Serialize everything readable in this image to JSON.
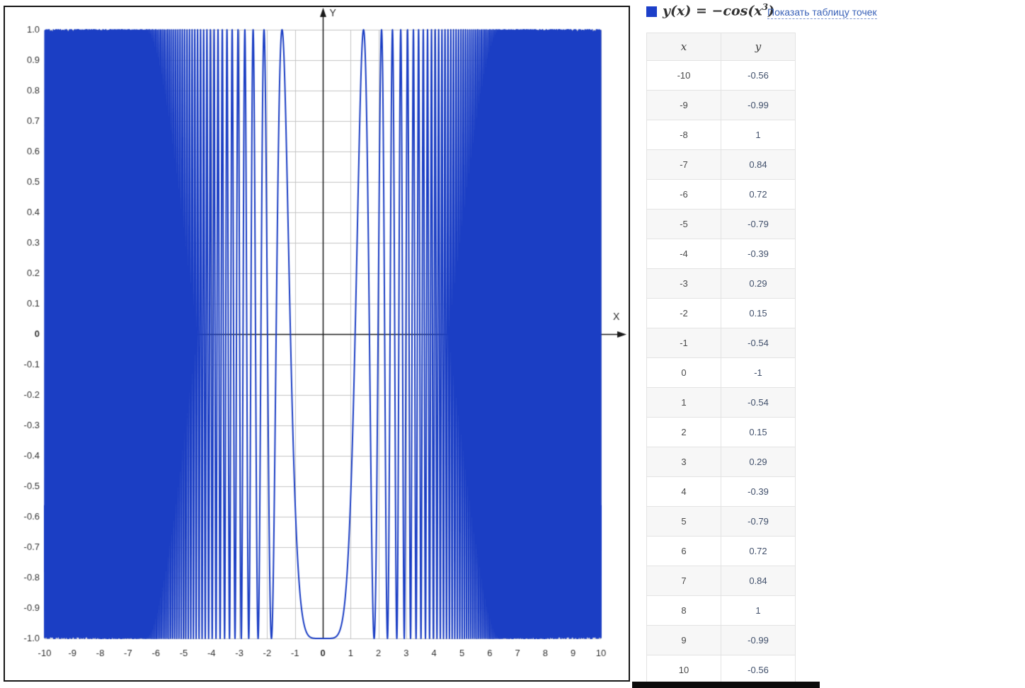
{
  "chart_data": {
    "type": "line",
    "title": "",
    "expression_label": "y(x) = −cos(x³)",
    "js_expr": "-Math.cos(x*x*x)",
    "x_range": [
      -10,
      10
    ],
    "y_range": [
      -1,
      1
    ],
    "x_tick_step": 1,
    "y_tick_step": 0.1,
    "x_axis_label": "X",
    "y_axis_label": "Y",
    "grid": true,
    "legend_position": "top-right",
    "curve_color": "#1b3ec4",
    "grid_color": "#c5c5c5",
    "axis_color": "#1a1a1a",
    "tick_label_color": "#333333",
    "line_width": 2,
    "samples": 20001,
    "points_table": {
      "columns": [
        "x",
        "y"
      ],
      "rows": [
        [
          -10,
          -0.56
        ],
        [
          -9,
          -0.99
        ],
        [
          -8,
          1
        ],
        [
          -7,
          0.84
        ],
        [
          -6,
          0.72
        ],
        [
          -5,
          -0.79
        ],
        [
          -4,
          -0.39
        ],
        [
          -3,
          0.29
        ],
        [
          -2,
          0.15
        ],
        [
          -1,
          -0.54
        ],
        [
          0,
          -1
        ],
        [
          1,
          -0.54
        ],
        [
          2,
          0.15
        ],
        [
          3,
          0.29
        ],
        [
          4,
          -0.39
        ],
        [
          5,
          -0.79
        ],
        [
          6,
          0.72
        ],
        [
          7,
          0.84
        ],
        [
          8,
          1
        ],
        [
          9,
          -0.99
        ],
        [
          10,
          -0.56
        ]
      ]
    }
  },
  "legend": {
    "swatch_color": "#1c3fc9",
    "formula_pre": "y(x) = −cos(x",
    "formula_sup": "3",
    "formula_post": ")",
    "table_link": "Показать таблицу точек"
  },
  "table": {
    "headers": [
      "x",
      "y"
    ]
  }
}
